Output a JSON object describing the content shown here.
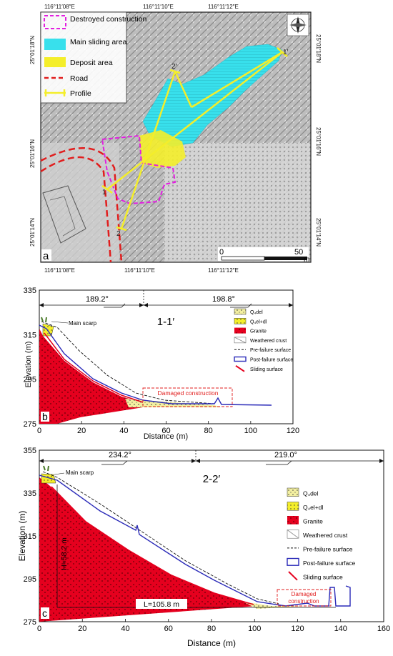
{
  "panel_a": {
    "label": "a",
    "top_coords": [
      "116°11′08″E",
      "116°11′10″E",
      "116°11′12″E"
    ],
    "bottom_coords": [
      "116°11′08″E",
      "116°11′10″E",
      "116°11′12″E"
    ],
    "left_coords": [
      "25°01′18″N",
      "25°01′16″N",
      "25°01′14″N"
    ],
    "right_coords": [
      "25°01′18″N",
      "25°01′16″N",
      "25°01′14″N"
    ],
    "legend": [
      {
        "label": "Destroyed construction",
        "color": "#e21fe0"
      },
      {
        "label": "Main sliding area",
        "color": "#38e0ec"
      },
      {
        "label": "Deposit area",
        "color": "#f4ee2a"
      },
      {
        "label": "Road",
        "color": "#e11d1d"
      },
      {
        "label": "Profile",
        "color": "#f4ee2a"
      }
    ],
    "profile_labels": [
      "1",
      "1′",
      "2",
      "2′"
    ],
    "scale": {
      "start": "0",
      "end": "50",
      "unit": "m"
    }
  },
  "panel_b": {
    "label": "b",
    "title": "1-1′",
    "ylabel": "Elevation (m)",
    "xlabel": "Distance (m)",
    "xticks": [
      "0",
      "20",
      "40",
      "60",
      "80",
      "100",
      "120"
    ],
    "yticks": [
      "335",
      "315",
      "295",
      "275"
    ],
    "directions": [
      "189.2°",
      "198.8°"
    ],
    "main_scarp": "Main scarp",
    "damaged": "Damaged construction",
    "legend": [
      "Q₄del",
      "Q₄el+dl",
      "Granite",
      "Weathered crust",
      "Pre-failure surface",
      "Post-failure surface",
      "Sliding surface"
    ]
  },
  "panel_c": {
    "label": "c",
    "title": "2-2′",
    "ylabel": "Elevation (m)",
    "xlabel": "Distance (m)",
    "xticks": [
      "0",
      "20",
      "40",
      "60",
      "80",
      "100",
      "120",
      "140",
      "160"
    ],
    "yticks": [
      "355",
      "335",
      "315",
      "295",
      "275"
    ],
    "directions": [
      "234.2°",
      "219.0°"
    ],
    "main_scarp": "Main scarp",
    "damaged_1": "Damaged",
    "damaged_2": "construction",
    "height": "H=58.2 m",
    "length": "L=105.8 m",
    "legend": [
      "Q₄del",
      "Q₄el+dl",
      "Granite",
      "Weathered crust",
      "Pre-failure surface",
      "Post-failure surface",
      "Sliding surface"
    ]
  }
}
